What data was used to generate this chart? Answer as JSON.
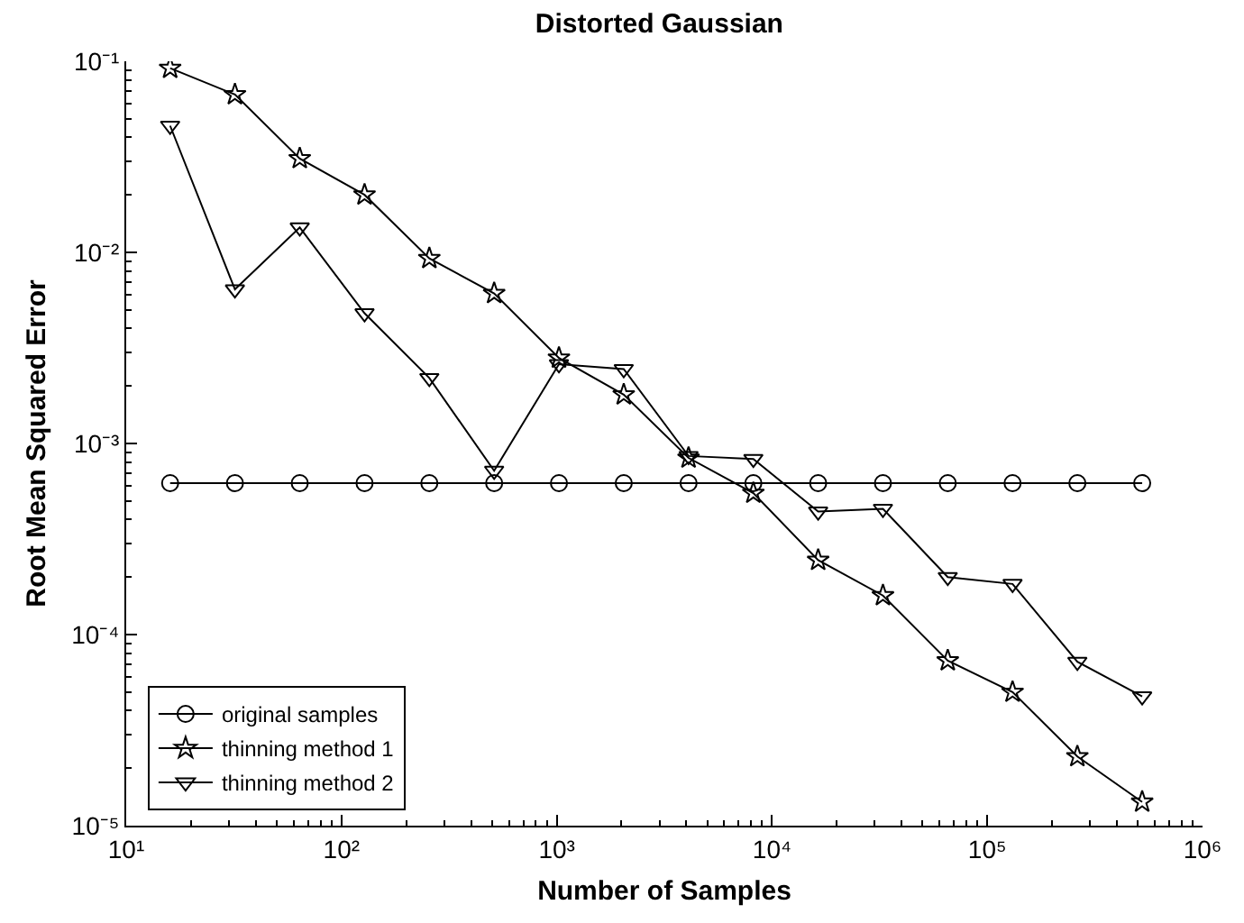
{
  "chart_data": {
    "type": "line",
    "title": "Distorted Gaussian",
    "xlabel": "Number of Samples",
    "ylabel": "Root Mean Squared Error",
    "x": [
      16,
      32,
      64,
      128,
      256,
      512,
      1024,
      2048,
      4096,
      8192,
      16384,
      32768,
      65536,
      131072,
      262144,
      524288
    ],
    "series": [
      {
        "name": "original samples",
        "color": "#000000",
        "marker": "circle",
        "values": [
          0.00062,
          0.00062,
          0.00062,
          0.00062,
          0.00062,
          0.00062,
          0.00062,
          0.00062,
          0.00062,
          0.00062,
          0.00062,
          0.00062,
          0.00062,
          0.00062,
          0.00062,
          0.00062
        ]
      },
      {
        "name": "thinning method 1",
        "color": "#000000",
        "marker": "star",
        "values": [
          0.092,
          0.067,
          0.031,
          0.02,
          0.0093,
          0.0061,
          0.0028,
          0.0018,
          0.00084,
          0.00055,
          0.000245,
          0.00016,
          7.3e-05,
          5e-05,
          2.3e-05,
          1.33e-05
        ]
      },
      {
        "name": "thinning method 2",
        "color": "#000000",
        "marker": "triangle",
        "values": [
          0.046,
          0.0064,
          0.0135,
          0.0048,
          0.0022,
          0.00072,
          0.0026,
          0.00245,
          0.00086,
          0.00083,
          0.00044,
          0.000455,
          0.0002,
          0.000184,
          7.2e-05,
          4.75e-05
        ]
      }
    ],
    "log": "xy",
    "xlim": [
      10,
      1000000
    ],
    "ylim": [
      1e-05,
      0.1
    ],
    "xticks": [
      {
        "value": 10,
        "label": "10¹"
      },
      {
        "value": 100,
        "label": "10²"
      },
      {
        "value": 1000,
        "label": "10³"
      },
      {
        "value": 10000,
        "label": "10⁴"
      },
      {
        "value": 100000,
        "label": "10⁵"
      },
      {
        "value": 1000000,
        "label": "10⁶"
      }
    ],
    "yticks": [
      {
        "value": 1e-05,
        "label": "10⁻⁵"
      },
      {
        "value": 0.0001,
        "label": "10⁻⁴"
      },
      {
        "value": 0.001,
        "label": "10⁻³"
      },
      {
        "value": 0.01,
        "label": "10⁻²"
      },
      {
        "value": 0.1,
        "label": "10⁻¹"
      }
    ],
    "grid": false,
    "legend": "bottom left",
    "line_style": "solid"
  }
}
